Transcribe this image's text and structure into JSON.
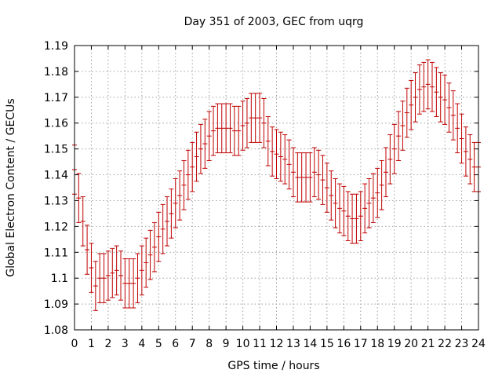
{
  "chart_data": {
    "type": "errorbar",
    "title": "Day 351 of 2003, GEC from uqrg",
    "xlabel": "GPS time / hours",
    "ylabel": "Global Electron Content / GECUs",
    "xlim": [
      0,
      24
    ],
    "ylim": [
      1.08,
      1.19
    ],
    "x_ticks": [
      0,
      1,
      2,
      3,
      4,
      5,
      6,
      7,
      8,
      9,
      10,
      11,
      12,
      13,
      14,
      15,
      16,
      17,
      18,
      19,
      20,
      21,
      22,
      23,
      24
    ],
    "y_ticks": [
      1.08,
      1.09,
      1.1,
      1.11,
      1.12,
      1.13,
      1.14,
      1.15,
      1.16,
      1.17,
      1.18,
      1.19
    ],
    "y_tick_labels": [
      "1.08",
      "1.09",
      "1.1",
      "1.11",
      "1.12",
      "1.13",
      "1.14",
      "1.15",
      "1.16",
      "1.17",
      "1.18",
      "1.19"
    ],
    "grid": true,
    "series": [
      {
        "name": "GEC",
        "color": "#c00000",
        "error": 0.0095,
        "x": [
          0.0,
          0.25,
          0.5,
          0.75,
          1.0,
          1.25,
          1.5,
          1.75,
          2.0,
          2.25,
          2.5,
          2.75,
          3.0,
          3.25,
          3.5,
          3.75,
          4.0,
          4.25,
          4.5,
          4.75,
          5.0,
          5.25,
          5.5,
          5.75,
          6.0,
          6.25,
          6.5,
          6.75,
          7.0,
          7.25,
          7.5,
          7.75,
          8.0,
          8.25,
          8.5,
          8.75,
          9.0,
          9.25,
          9.5,
          9.75,
          10.0,
          10.25,
          10.5,
          10.75,
          11.0,
          11.25,
          11.5,
          11.75,
          12.0,
          12.25,
          12.5,
          12.75,
          13.0,
          13.25,
          13.5,
          13.75,
          14.0,
          14.25,
          14.5,
          14.75,
          15.0,
          15.25,
          15.5,
          15.75,
          16.0,
          16.25,
          16.5,
          16.75,
          17.0,
          17.25,
          17.5,
          17.75,
          18.0,
          18.25,
          18.5,
          18.75,
          19.0,
          19.25,
          19.5,
          19.75,
          20.0,
          20.25,
          20.5,
          20.75,
          21.0,
          21.25,
          21.5,
          21.75,
          22.0,
          22.25,
          22.5,
          22.75,
          23.0,
          23.25,
          23.5,
          23.75,
          24.0
        ],
        "values": [
          1.142,
          1.131,
          1.122,
          1.111,
          1.104,
          1.097,
          1.1,
          1.1,
          1.101,
          1.102,
          1.103,
          1.101,
          1.098,
          1.098,
          1.098,
          1.1,
          1.103,
          1.106,
          1.109,
          1.112,
          1.116,
          1.119,
          1.122,
          1.125,
          1.129,
          1.132,
          1.136,
          1.14,
          1.143,
          1.147,
          1.15,
          1.152,
          1.155,
          1.157,
          1.158,
          1.158,
          1.158,
          1.158,
          1.157,
          1.157,
          1.159,
          1.16,
          1.162,
          1.162,
          1.162,
          1.16,
          1.153,
          1.149,
          1.148,
          1.147,
          1.146,
          1.144,
          1.141,
          1.139,
          1.139,
          1.139,
          1.139,
          1.141,
          1.14,
          1.138,
          1.135,
          1.132,
          1.129,
          1.127,
          1.126,
          1.124,
          1.123,
          1.123,
          1.124,
          1.127,
          1.129,
          1.131,
          1.133,
          1.136,
          1.141,
          1.146,
          1.15,
          1.155,
          1.159,
          1.164,
          1.167,
          1.17,
          1.173,
          1.174,
          1.175,
          1.174,
          1.172,
          1.17,
          1.169,
          1.166,
          1.163,
          1.158,
          1.154,
          1.149,
          1.146,
          1.143,
          1.143
        ]
      }
    ]
  }
}
